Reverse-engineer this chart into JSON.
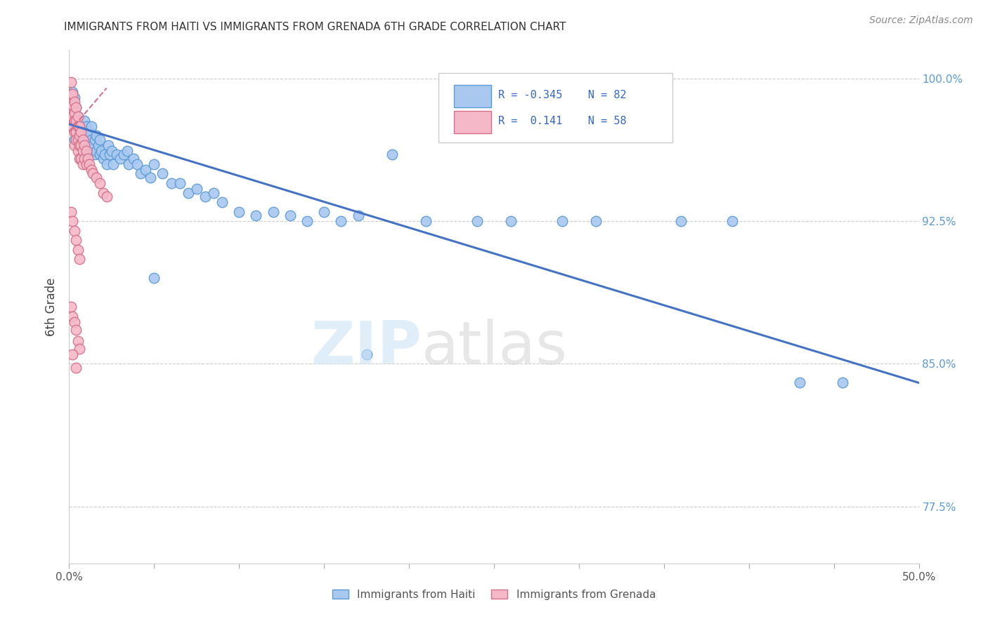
{
  "title": "IMMIGRANTS FROM HAITI VS IMMIGRANTS FROM GRENADA 6TH GRADE CORRELATION CHART",
  "source": "Source: ZipAtlas.com",
  "ylabel": "6th Grade",
  "xlim": [
    0.0,
    0.5
  ],
  "ylim": [
    0.745,
    1.015
  ],
  "haiti_color": "#a8c8f0",
  "haiti_edge": "#5b9bd5",
  "grenada_color": "#f4b8c8",
  "grenada_edge": "#d4708a",
  "haiti_R": -0.345,
  "haiti_N": 82,
  "grenada_R": 0.141,
  "grenada_N": 58,
  "haiti_line_color": "#4472c4",
  "grenada_line_color": "#d4708a",
  "haiti_points_x": [
    0.001,
    0.002,
    0.002,
    0.003,
    0.003,
    0.003,
    0.004,
    0.004,
    0.005,
    0.005,
    0.006,
    0.006,
    0.007,
    0.007,
    0.008,
    0.008,
    0.009,
    0.009,
    0.01,
    0.01,
    0.01,
    0.011,
    0.011,
    0.012,
    0.012,
    0.013,
    0.013,
    0.014,
    0.015,
    0.015,
    0.016,
    0.016,
    0.017,
    0.018,
    0.018,
    0.019,
    0.02,
    0.021,
    0.022,
    0.023,
    0.024,
    0.025,
    0.026,
    0.028,
    0.03,
    0.032,
    0.034,
    0.035,
    0.038,
    0.04,
    0.042,
    0.045,
    0.048,
    0.05,
    0.055,
    0.06,
    0.065,
    0.07,
    0.075,
    0.08,
    0.085,
    0.09,
    0.1,
    0.11,
    0.12,
    0.13,
    0.14,
    0.15,
    0.16,
    0.17,
    0.19,
    0.21,
    0.24,
    0.26,
    0.29,
    0.31,
    0.36,
    0.39,
    0.43,
    0.455,
    0.175,
    0.05
  ],
  "haiti_points_y": [
    0.985,
    0.993,
    0.975,
    0.978,
    0.968,
    0.99,
    0.975,
    0.985,
    0.972,
    0.98,
    0.968,
    0.975,
    0.975,
    0.965,
    0.975,
    0.965,
    0.968,
    0.978,
    0.97,
    0.965,
    0.975,
    0.968,
    0.96,
    0.972,
    0.965,
    0.968,
    0.975,
    0.965,
    0.968,
    0.96,
    0.962,
    0.97,
    0.965,
    0.96,
    0.968,
    0.962,
    0.958,
    0.96,
    0.955,
    0.965,
    0.96,
    0.962,
    0.955,
    0.96,
    0.958,
    0.96,
    0.962,
    0.955,
    0.958,
    0.955,
    0.95,
    0.952,
    0.948,
    0.955,
    0.95,
    0.945,
    0.945,
    0.94,
    0.942,
    0.938,
    0.94,
    0.935,
    0.93,
    0.928,
    0.93,
    0.928,
    0.925,
    0.93,
    0.925,
    0.928,
    0.96,
    0.925,
    0.925,
    0.925,
    0.925,
    0.925,
    0.925,
    0.925,
    0.84,
    0.84,
    0.855,
    0.895
  ],
  "grenada_points_x": [
    0.001,
    0.001,
    0.001,
    0.001,
    0.001,
    0.002,
    0.002,
    0.002,
    0.002,
    0.003,
    0.003,
    0.003,
    0.003,
    0.003,
    0.004,
    0.004,
    0.004,
    0.004,
    0.005,
    0.005,
    0.005,
    0.005,
    0.006,
    0.006,
    0.006,
    0.006,
    0.007,
    0.007,
    0.007,
    0.008,
    0.008,
    0.008,
    0.009,
    0.009,
    0.01,
    0.01,
    0.011,
    0.012,
    0.013,
    0.014,
    0.016,
    0.018,
    0.02,
    0.022,
    0.001,
    0.002,
    0.003,
    0.004,
    0.005,
    0.006,
    0.001,
    0.002,
    0.003,
    0.004,
    0.005,
    0.006,
    0.002,
    0.004
  ],
  "grenada_points_y": [
    0.998,
    0.992,
    0.986,
    0.98,
    0.975,
    0.992,
    0.986,
    0.98,
    0.975,
    0.988,
    0.982,
    0.978,
    0.972,
    0.965,
    0.985,
    0.978,
    0.972,
    0.968,
    0.98,
    0.975,
    0.968,
    0.962,
    0.975,
    0.97,
    0.965,
    0.958,
    0.972,
    0.965,
    0.958,
    0.968,
    0.962,
    0.955,
    0.965,
    0.958,
    0.962,
    0.955,
    0.958,
    0.955,
    0.952,
    0.95,
    0.948,
    0.945,
    0.94,
    0.938,
    0.93,
    0.925,
    0.92,
    0.915,
    0.91,
    0.905,
    0.88,
    0.875,
    0.872,
    0.868,
    0.862,
    0.858,
    0.855,
    0.848
  ],
  "haiti_line_x": [
    0.0,
    0.5
  ],
  "haiti_line_y": [
    0.976,
    0.84
  ],
  "grenada_line_x": [
    0.0,
    0.022
  ],
  "grenada_line_y": [
    0.972,
    0.995
  ]
}
